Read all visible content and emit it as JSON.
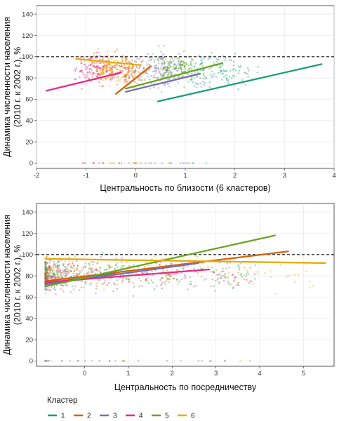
{
  "chart_data": [
    {
      "type": "scatter",
      "xlabel": "Центральность по близости (6 кластеров)",
      "ylabel_lines": [
        "Динамика численности населения",
        "(2010 г. к 2002 г.), %"
      ],
      "xlim": [
        -2,
        4
      ],
      "ylim": [
        -5,
        148
      ],
      "xticks": [
        -2,
        -1,
        0,
        1,
        2,
        3,
        4
      ],
      "yticks": [
        0,
        20,
        40,
        60,
        80,
        100,
        120,
        140
      ],
      "reference_line": 100,
      "grid": true,
      "series": [
        {
          "name": "1",
          "trend": [
            [
              0.45,
              58
            ],
            [
              3.75,
              93
            ]
          ]
        },
        {
          "name": "2",
          "trend": [
            [
              -0.4,
              65
            ],
            [
              0.3,
              91
            ]
          ]
        },
        {
          "name": "3",
          "trend": [
            [
              -0.2,
              67
            ],
            [
              1.3,
              84
            ]
          ]
        },
        {
          "name": "4",
          "trend": [
            [
              -1.8,
              68
            ],
            [
              -0.3,
              85
            ]
          ]
        },
        {
          "name": "5",
          "trend": [
            [
              -0.2,
              70
            ],
            [
              1.75,
              94
            ]
          ]
        },
        {
          "name": "6",
          "trend": [
            [
              -1.2,
              98
            ],
            [
              0.1,
              92
            ]
          ]
        }
      ]
    },
    {
      "type": "scatter",
      "xlabel": "Центральность по посредничеству",
      "ylabel_lines": [
        "Динамика численности населения",
        "(2010 г. к 2002 г.), %"
      ],
      "xlim": [
        -1.1,
        5.7
      ],
      "ylim": [
        -5,
        148
      ],
      "xticks": [
        0,
        1,
        2,
        3,
        4,
        5
      ],
      "yticks": [
        0,
        20,
        40,
        60,
        80,
        100,
        120,
        140
      ],
      "reference_line": 100,
      "grid": true,
      "series": [
        {
          "name": "1",
          "trend": [
            [
              -0.9,
              73
            ],
            [
              0.7,
              82
            ]
          ]
        },
        {
          "name": "2",
          "trend": [
            [
              -0.9,
              75
            ],
            [
              4.65,
              103
            ]
          ]
        },
        {
          "name": "3",
          "trend": [
            [
              -0.9,
              72
            ],
            [
              2.6,
              92
            ]
          ]
        },
        {
          "name": "4",
          "trend": [
            [
              -0.9,
              74
            ],
            [
              2.85,
              86
            ]
          ]
        },
        {
          "name": "5",
          "trend": [
            [
              -0.9,
              70
            ],
            [
              4.35,
              118
            ]
          ]
        },
        {
          "name": "6",
          "trend": [
            [
              -0.9,
              96
            ],
            [
              5.5,
              92
            ]
          ]
        }
      ]
    }
  ],
  "legend": {
    "title": "Кластер",
    "items": [
      {
        "label": "1",
        "color": "#1b9e77"
      },
      {
        "label": "2",
        "color": "#d95f02"
      },
      {
        "label": "3",
        "color": "#7570b3"
      },
      {
        "label": "4",
        "color": "#e7298a"
      },
      {
        "label": "5",
        "color": "#66a61e"
      },
      {
        "label": "6",
        "color": "#e6ab02"
      }
    ]
  }
}
